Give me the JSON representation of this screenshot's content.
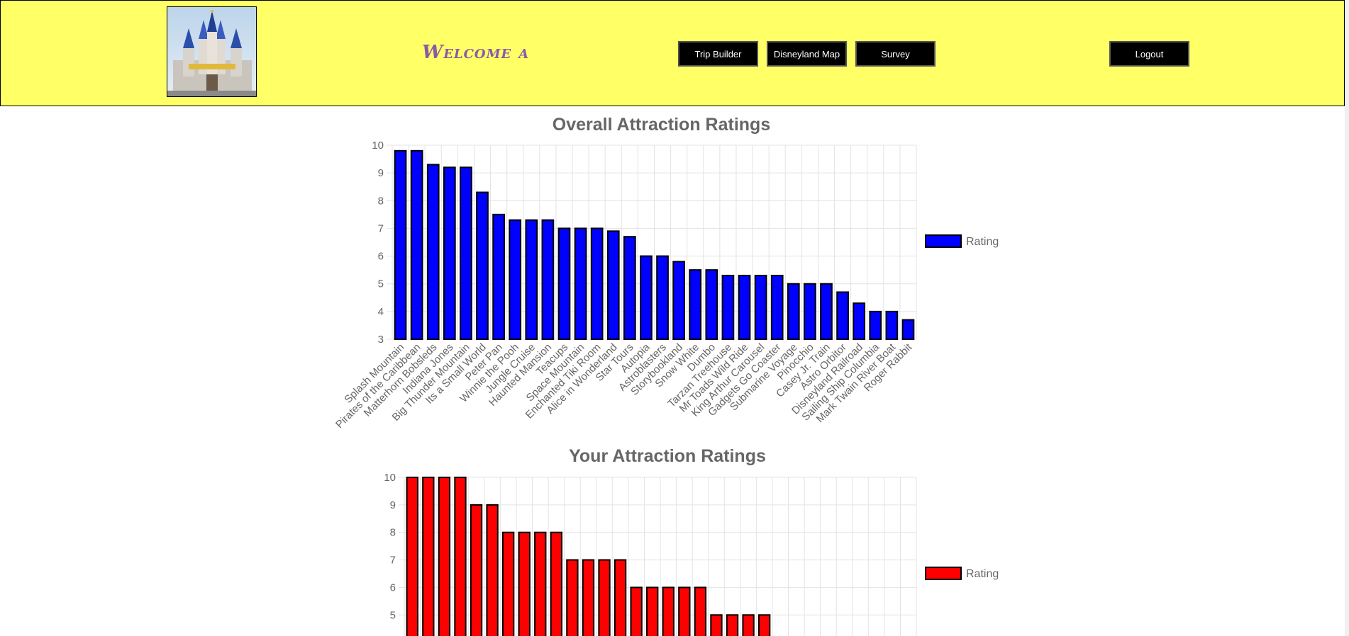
{
  "header": {
    "welcome_text": "Welcome a",
    "nav": {
      "trip_builder": "Trip Builder",
      "disneyland_map": "Disneyland Map",
      "survey": "Survey",
      "logout": "Logout"
    }
  },
  "chart_data": [
    {
      "type": "bar",
      "title": "Overall Attraction Ratings",
      "categories": [
        "Splash Mountain",
        "Pirates of the Caribbean",
        "Matterhorn Bobsleds",
        "Indiana Jones",
        "Big Thunder Mountain",
        "Its a Small World",
        "Peter Pan",
        "Winnie the Pooh",
        "Jungle Cruise",
        "Haunted Mansion",
        "Teacups",
        "Space Mountain",
        "Enchanted Tiki Room",
        "Alice in Wonderland",
        "Star Tours",
        "Autopia",
        "Astroblasters",
        "Storybookland",
        "Snow White",
        "Dumbo",
        "Tarzan Treehouse",
        "Mr Toads Wild Ride",
        "King Arthur Carousel",
        "Gadgets Go Coaster",
        "Submarine Voyage",
        "Pinocchio",
        "Casey Jr. Train",
        "Astro Orbitor",
        "Disneyland Railroad",
        "Sailing Ship Columbia",
        "Mark Twain River Boat",
        "Roger Rabbit"
      ],
      "series": [
        {
          "name": "Rating",
          "color": "#0000ff",
          "values": [
            9.8,
            9.8,
            9.3,
            9.2,
            9.2,
            8.3,
            7.5,
            7.3,
            7.3,
            7.3,
            7.0,
            7.0,
            7.0,
            6.9,
            6.7,
            6.0,
            6.0,
            5.8,
            5.5,
            5.5,
            5.3,
            5.3,
            5.3,
            5.3,
            5.0,
            5.0,
            5.0,
            4.7,
            4.3,
            4.0,
            4.0,
            3.7
          ]
        }
      ],
      "yticks": [
        "10",
        "9",
        "8",
        "7",
        "6",
        "5",
        "4",
        "3"
      ],
      "ylim": [
        3,
        10
      ],
      "grid": true,
      "legend_position": "right"
    },
    {
      "type": "bar",
      "title": "Your Attraction Ratings",
      "series": [
        {
          "name": "Rating",
          "color": "#ff0000",
          "values": [
            10,
            10,
            10,
            10,
            9,
            9,
            8,
            8,
            8,
            8,
            7,
            7,
            7,
            7,
            6,
            6,
            6,
            6,
            6,
            5,
            5,
            5,
            5
          ]
        }
      ],
      "yticks": [
        "10",
        "9",
        "8",
        "7",
        "6",
        "5"
      ],
      "ylim": [
        3,
        10
      ],
      "grid": true,
      "legend_position": "right"
    }
  ]
}
